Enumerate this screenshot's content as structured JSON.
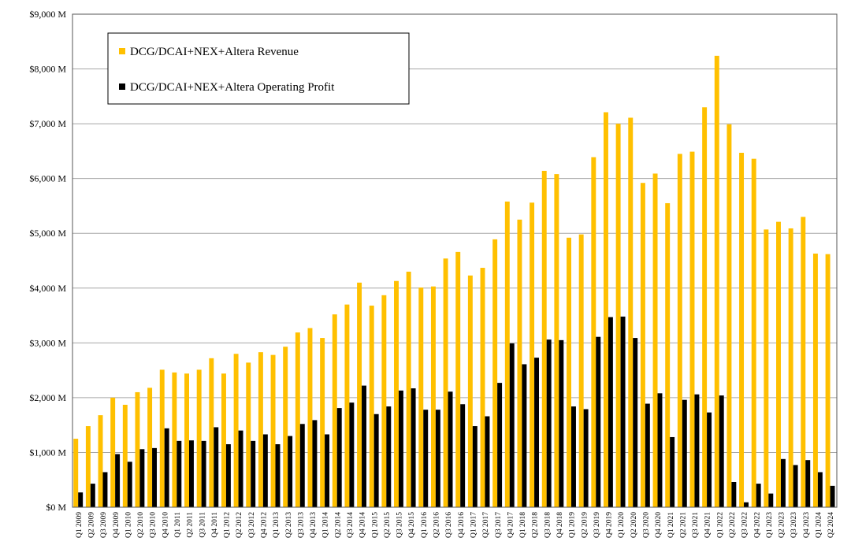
{
  "chart_data": {
    "type": "bar",
    "categories": [
      "Q1 2009",
      "Q2 2009",
      "Q3 2009",
      "Q4 2009",
      "Q1 2010",
      "Q2 2010",
      "Q3 2010",
      "Q4 2010",
      "Q1 2011",
      "Q2 2011",
      "Q3 2011",
      "Q4 2011",
      "Q1 2012",
      "Q2 2012",
      "Q3 2012",
      "Q4 2012",
      "Q1 2013",
      "Q2 2013",
      "Q3 2013",
      "Q4 2013",
      "Q1 2014",
      "Q2 2014",
      "Q3 2014",
      "Q4 2014",
      "Q1 2015",
      "Q2 2015",
      "Q3 2015",
      "Q4 2015",
      "Q1 2016",
      "Q2 2016",
      "Q3 2016",
      "Q4 2016",
      "Q1 2017",
      "Q2 2017",
      "Q3 2017",
      "Q4 2017",
      "Q1 2018",
      "Q2 2018",
      "Q3 2018",
      "Q4 2018",
      "Q1 2019",
      "Q2 2019",
      "Q3 2019",
      "Q4 2019",
      "Q1 2020",
      "Q2 2020",
      "Q3 2020",
      "Q4 2020",
      "Q1 2021",
      "Q2 2021",
      "Q3 2021",
      "Q4 2021",
      "Q1 2022",
      "Q2 2022",
      "Q3 2022",
      "Q4 2022",
      "Q1 2023",
      "Q2 2023",
      "Q3 2023",
      "Q4 2023",
      "Q1 2024",
      "Q2 2024"
    ],
    "series": [
      {
        "name": "DCG/DCAI+NEX+Altera Revenue",
        "color": "#FFC000",
        "values": [
          1250,
          1480,
          1680,
          2000,
          1870,
          2100,
          2180,
          2510,
          2460,
          2440,
          2510,
          2720,
          2440,
          2800,
          2640,
          2830,
          2780,
          2930,
          3190,
          3270,
          3090,
          3520,
          3700,
          4100,
          3680,
          3870,
          4130,
          4300,
          4010,
          4030,
          4540,
          4660,
          4230,
          4370,
          4890,
          5580,
          5250,
          5560,
          6140,
          6080,
          4920,
          4980,
          6390,
          7210,
          7000,
          7110,
          5920,
          6090,
          5550,
          6450,
          6490,
          7300,
          8240,
          6990,
          6470,
          6360,
          5070,
          5210,
          5090,
          5300,
          4630,
          4620
        ]
      },
      {
        "name": "DCG/DCAI+NEX+Altera Operating Profit",
        "color": "#000000",
        "values": [
          270,
          430,
          640,
          970,
          830,
          1060,
          1080,
          1440,
          1210,
          1220,
          1210,
          1460,
          1150,
          1400,
          1210,
          1330,
          1150,
          1300,
          1520,
          1590,
          1330,
          1810,
          1910,
          2220,
          1700,
          1840,
          2130,
          2170,
          1780,
          1780,
          2110,
          1880,
          1480,
          1660,
          2270,
          2990,
          2610,
          2730,
          3060,
          3050,
          1840,
          1790,
          3110,
          3470,
          3480,
          3090,
          1890,
          2080,
          1280,
          1960,
          2060,
          1730,
          2040,
          460,
          90,
          430,
          250,
          880,
          770,
          860,
          640,
          390
        ]
      }
    ],
    "y_tick_labels": [
      "$0 M",
      "$1,000 M",
      "$2,000 M",
      "$3,000 M",
      "$4,000 M",
      "$5,000 M",
      "$6,000 M",
      "$7,000 M",
      "$8,000 M",
      "$9,000 M"
    ],
    "ylim": [
      0,
      9000
    ],
    "title": "",
    "xlabel": "",
    "ylabel": "",
    "grid": "horizontal",
    "legend_placement": "top-left"
  }
}
